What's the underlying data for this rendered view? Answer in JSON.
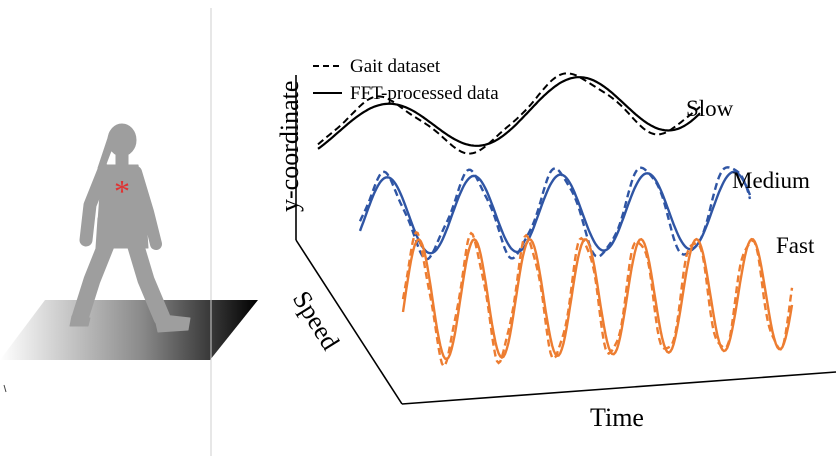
{
  "chart_data": {
    "type": "line",
    "xlabel": "Time",
    "ylabel": "y-coordinate",
    "zlabel": "Speed",
    "legend": {
      "placement": "top-left",
      "entries": [
        {
          "label": "Gait dataset",
          "style": "dashed"
        },
        {
          "label": "FFT-processed data",
          "style": "solid"
        }
      ]
    },
    "series": [
      {
        "name": "Slow",
        "color": "#000000",
        "cycles": 2,
        "smooth": [
          0.4,
          0.6
        ],
        "dataset": [
          0.52,
          0.62
        ]
      },
      {
        "name": "Medium",
        "color": "#2f55a4",
        "cycles": 4.5,
        "smooth": [
          0.5,
          0.5
        ],
        "dataset": [
          0.52,
          0.6
        ]
      },
      {
        "name": "Fast",
        "color": "#ed7d31",
        "cycles": 7,
        "smooth": [
          0.55,
          0.5
        ],
        "dataset": [
          0.57,
          0.5
        ]
      }
    ],
    "axes_shown_with_ticks": false
  },
  "illustration": {
    "marker_symbol": "*",
    "marker_color": "#e03232",
    "figure_color": "#9e9e9e"
  }
}
